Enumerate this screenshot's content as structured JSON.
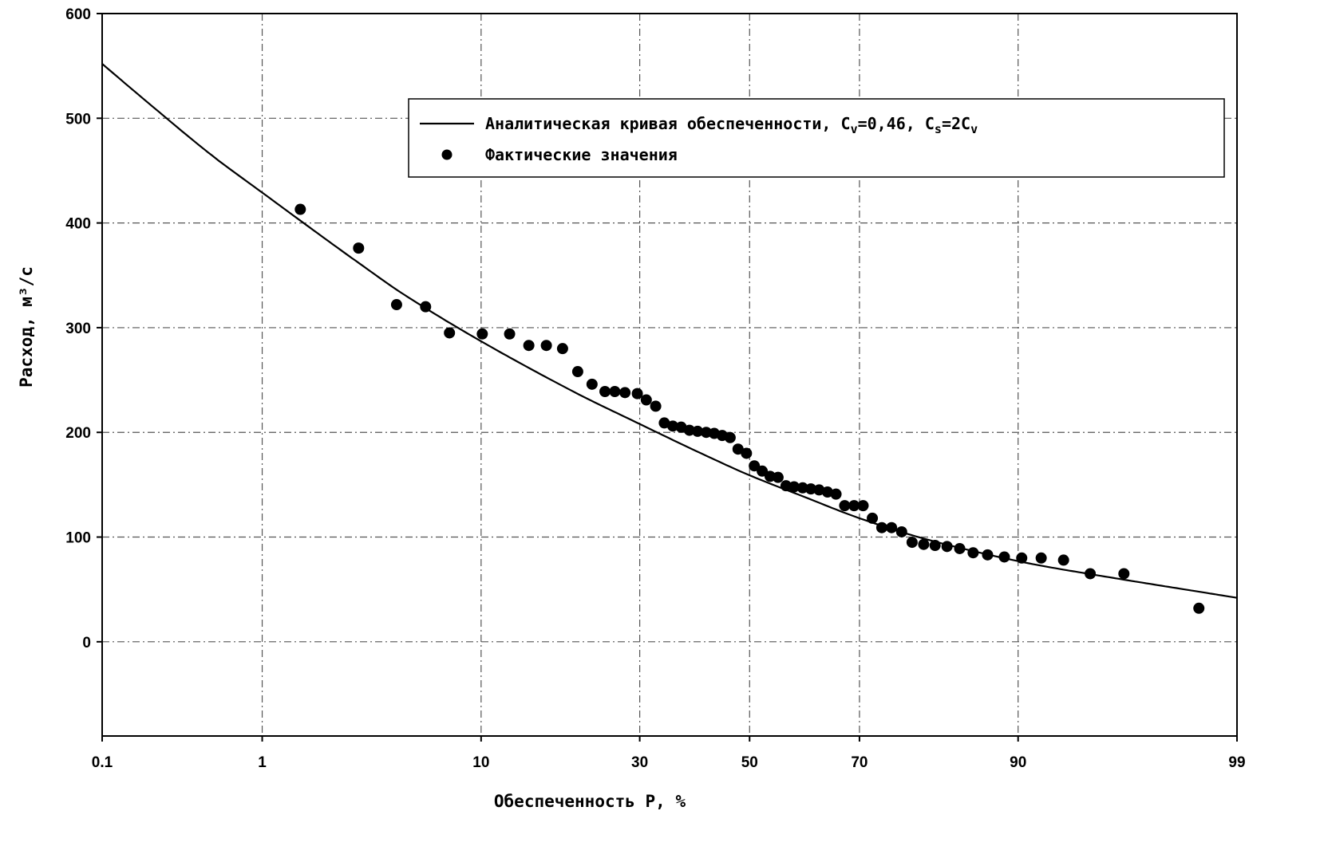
{
  "chart_data": {
    "type": "scatter",
    "xlabel": "Обеспеченность P, %",
    "ylabel": "Расход, м³/с",
    "x_scale": "probability",
    "xlim": [
      0.1,
      99
    ],
    "ylim": [
      -90,
      600
    ],
    "xticks": [
      0.1,
      1,
      10,
      30,
      50,
      70,
      90,
      99
    ],
    "yticks": [
      0,
      100,
      200,
      300,
      400,
      500,
      600
    ],
    "grid": true,
    "legend_position": "top-right",
    "legend": [
      {
        "kind": "line",
        "text": "Аналитическая кривая обеспеченности, C",
        "sub_v": "v",
        "text2": "=0,46, C",
        "sub_s": "s",
        "text3": "=2C",
        "sub_v2": "v"
      },
      {
        "kind": "marker",
        "text": "Фактические  значения"
      }
    ],
    "series": [
      {
        "name": "Аналитическая кривая обеспеченности, Cv=0,46, Cs=2Cv",
        "kind": "line",
        "x": [
          0.1,
          0.2,
          0.5,
          1,
          2,
          3,
          5,
          10,
          20,
          30,
          40,
          50,
          60,
          70,
          80,
          90,
          95,
          99
        ],
        "y": [
          552,
          516,
          466,
          429,
          389,
          364,
          331,
          287,
          239,
          208,
          182,
          159,
          139,
          118,
          98,
          77,
          64,
          42
        ]
      },
      {
        "name": "Фактические  значения",
        "kind": "scatter",
        "x": [
          1.6,
          3.1,
          4.6,
          6.1,
          7.6,
          10.1,
          12.6,
          14.6,
          16.6,
          18.6,
          20.6,
          22.6,
          24.5,
          26.0,
          27.6,
          29.6,
          31.1,
          32.7,
          34.2,
          35.7,
          37.2,
          38.7,
          40.2,
          41.8,
          43.3,
          44.8,
          46.3,
          47.8,
          49.4,
          50.9,
          52.4,
          53.9,
          55.4,
          56.9,
          58.4,
          60.0,
          61.5,
          63.0,
          64.5,
          66.0,
          67.5,
          69.1,
          70.6,
          72.1,
          73.6,
          75.1,
          76.6,
          78.1,
          79.7,
          81.2,
          82.7,
          84.2,
          85.7,
          87.2,
          88.8,
          90.3,
          91.8,
          93.3,
          94.8,
          96.3,
          98.4
        ],
        "y": [
          413,
          376,
          322,
          320,
          295,
          294,
          294,
          283,
          283,
          280,
          258,
          246,
          239,
          239,
          238,
          237,
          231,
          225,
          209,
          206,
          205,
          202,
          201,
          200,
          199,
          197,
          195,
          184,
          180,
          168,
          163,
          158,
          157,
          149,
          148,
          147,
          146,
          145,
          143,
          141,
          130,
          130,
          130,
          118,
          109,
          109,
          105,
          95,
          93,
          92,
          91,
          89,
          85,
          83,
          81,
          80,
          80,
          78,
          65,
          65,
          32
        ]
      }
    ]
  },
  "colors": {
    "line": "#000000",
    "marker": "#000000",
    "grid": "#555555",
    "background": "#ffffff"
  }
}
